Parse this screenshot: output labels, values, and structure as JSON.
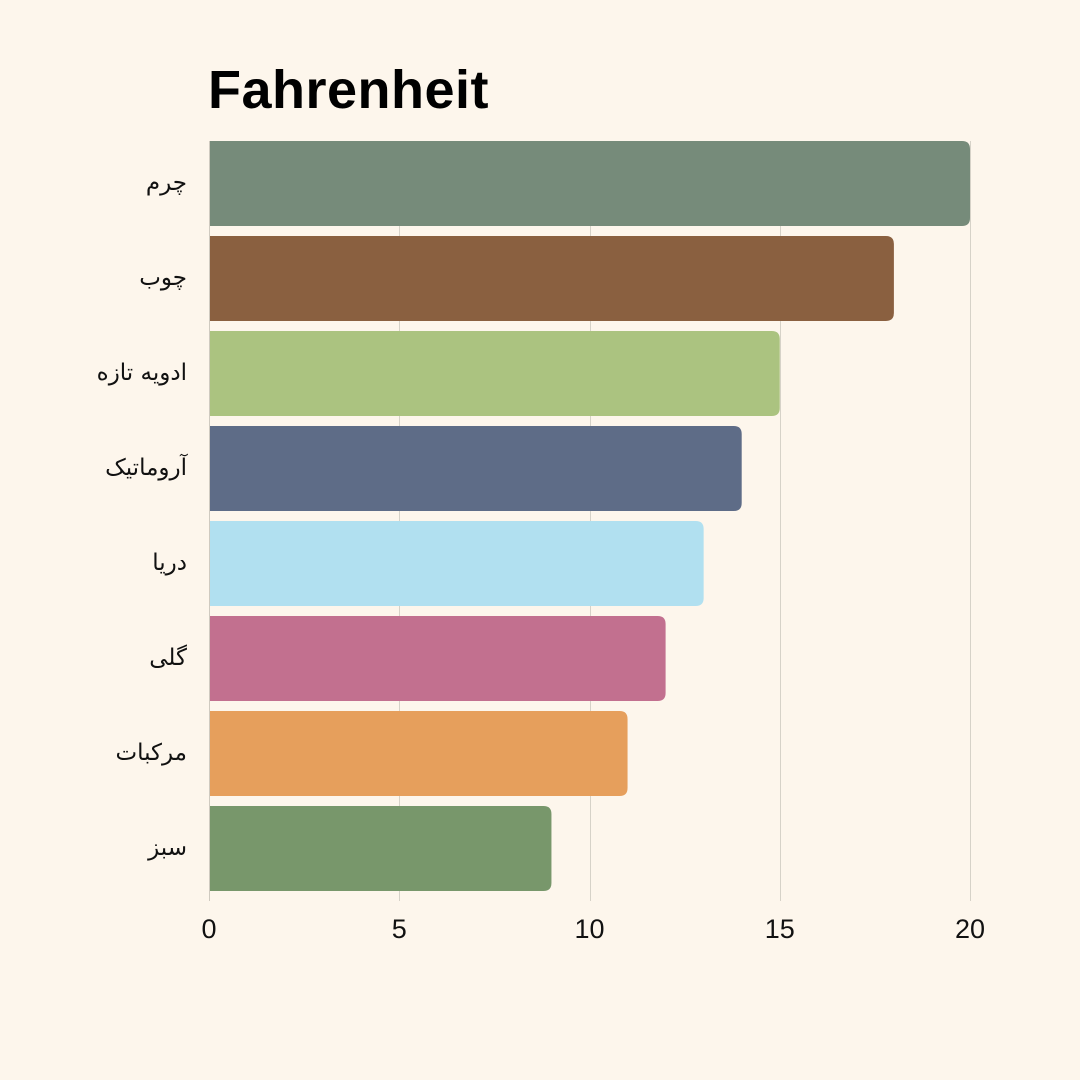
{
  "chart_data": {
    "type": "bar",
    "orientation": "horizontal",
    "title": "Fahrenheit",
    "xlabel": "",
    "ylabel": "",
    "categories": [
      "چرم",
      "چوب",
      "ادویه تازه",
      "آروماتیک",
      "دریا",
      "گلی",
      "مرکبات",
      "سبز"
    ],
    "values": [
      20,
      18,
      15,
      14,
      13,
      12,
      11,
      9
    ],
    "colors": [
      "#768b7a",
      "#8a6040",
      "#abc380",
      "#5e6c87",
      "#b1e0f0",
      "#c2708f",
      "#e69f5c",
      "#78976b"
    ],
    "xlim": [
      0,
      20
    ],
    "xticks": [
      0,
      5,
      10,
      15,
      20
    ],
    "grid": true,
    "legend": "none"
  }
}
